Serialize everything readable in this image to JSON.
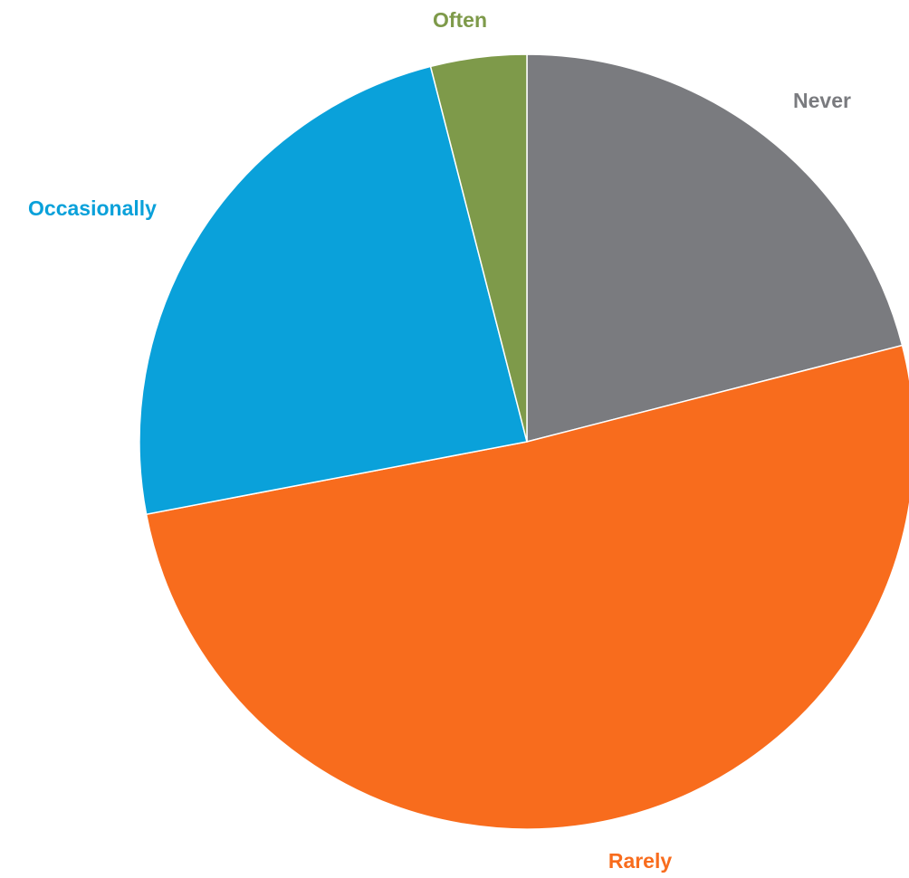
{
  "chart_data": {
    "type": "pie",
    "title": "",
    "start_angle_deg": 0,
    "direction": "clockwise",
    "legend": "none",
    "slices": [
      {
        "label": "Never",
        "value": 21,
        "color": "#7a7b7f",
        "label_color": "#7a7b7f"
      },
      {
        "label": "Rarely",
        "value": 51,
        "color": "#f86c1d",
        "label_color": "#f86c1d"
      },
      {
        "label": "Occasionally",
        "value": 24,
        "color": "#0aa1da",
        "label_color": "#0aa1da"
      },
      {
        "label": "Often",
        "value": 4,
        "color": "#7e9a4a",
        "label_color": "#7e9a4a"
      }
    ]
  }
}
